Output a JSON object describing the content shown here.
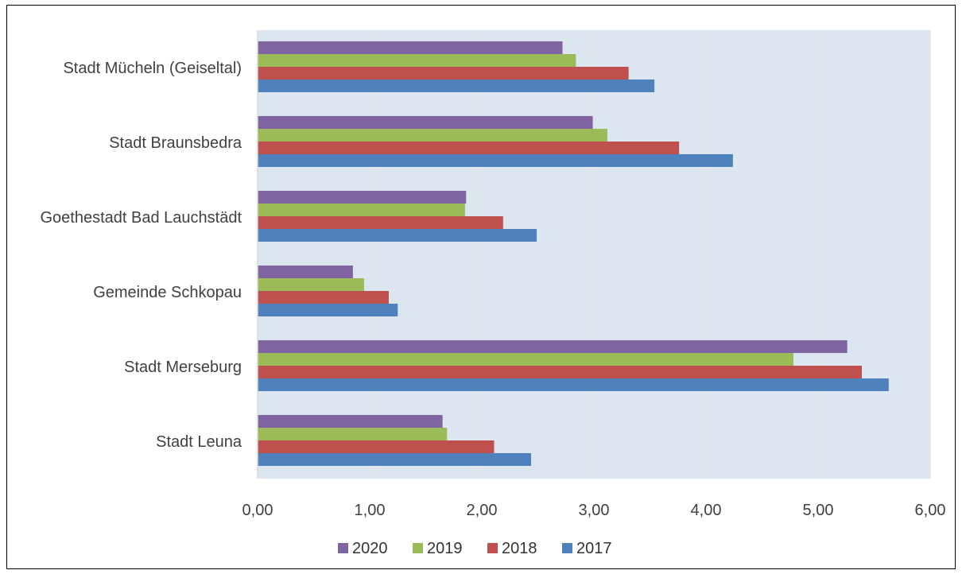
{
  "chart_data": {
    "type": "bar",
    "orientation": "horizontal",
    "title": "",
    "xlabel": "",
    "ylabel": "",
    "categories": [
      "Stadt Mücheln (Geiseltal)",
      "Stadt Braunsbedra",
      "Goethestadt Bad Lauchstädt",
      "Gemeinde Schkopau",
      "Stadt Merseburg",
      "Stadt Leuna"
    ],
    "series": [
      {
        "name": "2020",
        "color": "#8064A2",
        "values": [
          2.72,
          2.99,
          1.86,
          0.85,
          5.26,
          1.65
        ]
      },
      {
        "name": "2019",
        "color": "#9BBB59",
        "values": [
          2.84,
          3.12,
          1.85,
          0.95,
          4.78,
          1.69
        ]
      },
      {
        "name": "2018",
        "color": "#C0504D",
        "values": [
          3.31,
          3.76,
          2.19,
          1.17,
          5.39,
          2.11
        ]
      },
      {
        "name": "2017",
        "color": "#4F81BD",
        "values": [
          3.54,
          4.24,
          2.49,
          1.25,
          5.63,
          2.44
        ]
      }
    ],
    "xlim": [
      0,
      6
    ],
    "xticks": [
      "0,00",
      "1,00",
      "2,00",
      "3,00",
      "4,00",
      "5,00",
      "6,00"
    ],
    "grid": true,
    "plot_background": "#DCE6F1",
    "legend_position": "bottom"
  }
}
